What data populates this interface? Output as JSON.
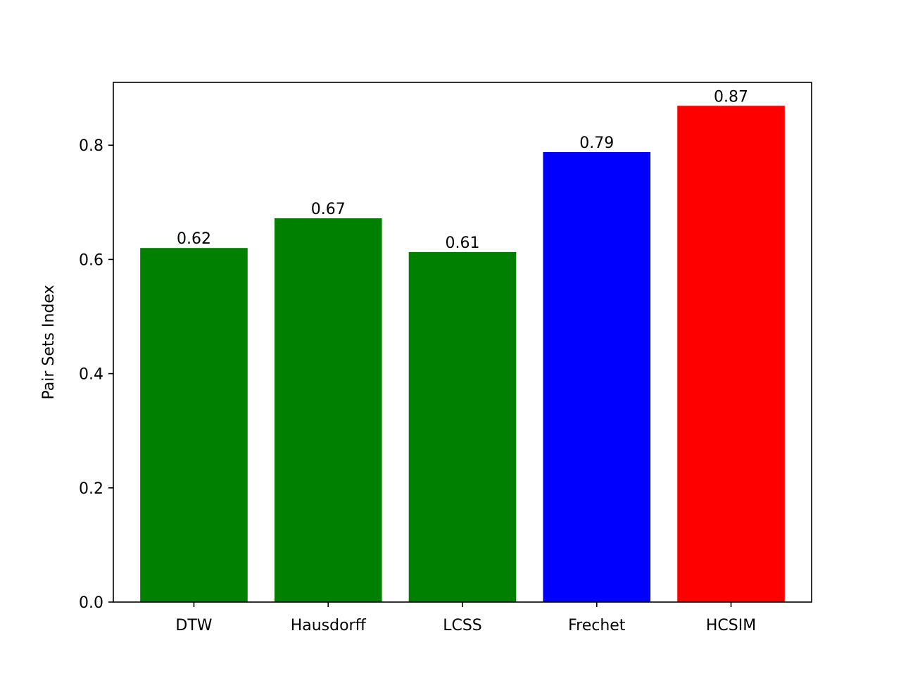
{
  "chart_data": {
    "type": "bar",
    "title": "",
    "xlabel": "",
    "ylabel": "Pair Sets Index",
    "categories": [
      "DTW",
      "Hausdorff",
      "LCSS",
      "Frechet",
      "HCSIM"
    ],
    "values": [
      0.62,
      0.672,
      0.613,
      0.788,
      0.869
    ],
    "value_labels": [
      "0.62",
      "0.67",
      "0.61",
      "0.79",
      "0.87"
    ],
    "colors": [
      "#008000",
      "#008000",
      "#008000",
      "#0000ff",
      "#ff0000"
    ],
    "ylim": [
      0,
      0.91
    ],
    "yticks": [
      0.0,
      0.2,
      0.4,
      0.6,
      0.8
    ],
    "ytick_labels": [
      "0.0",
      "0.2",
      "0.4",
      "0.6",
      "0.8"
    ],
    "grid": false,
    "legend": "none"
  }
}
